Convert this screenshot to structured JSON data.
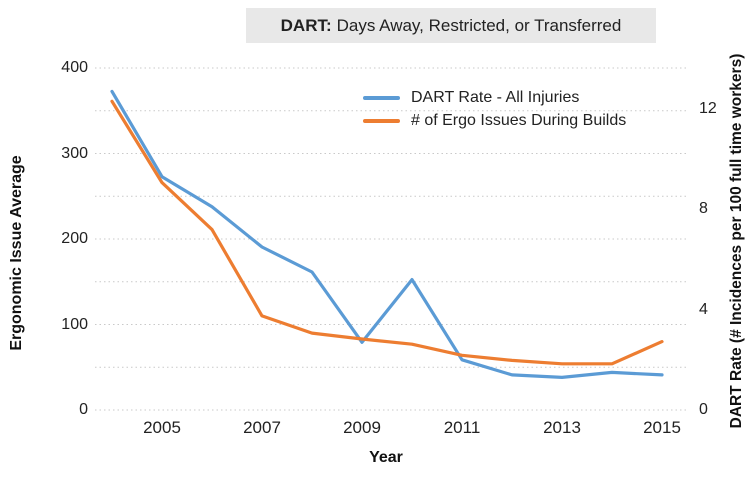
{
  "chart_data": {
    "type": "line",
    "title": {
      "prefix": "DART:",
      "text": "Days Away, Restricted, or Transferred"
    },
    "x_label": "Year",
    "years": [
      2004,
      2005,
      2006,
      2007,
      2008,
      2009,
      2010,
      2011,
      2012,
      2013,
      2014,
      2015
    ],
    "x_tick_labels": [
      2005,
      2007,
      2009,
      2011,
      2013,
      2015
    ],
    "series": [
      {
        "name": "DART Rate - All Injuries",
        "axis": "right",
        "color": "#5B9BD5",
        "values": [
          12.7,
          9.3,
          8.1,
          6.5,
          5.5,
          2.7,
          5.2,
          2.0,
          1.4,
          1.3,
          1.5,
          1.4
        ]
      },
      {
        "name": "# of Ergo Issues During Builds",
        "axis": "left",
        "color": "#ED7D31",
        "values": [
          361,
          266,
          211,
          110,
          90,
          83,
          77,
          64,
          58,
          54,
          54,
          80
        ]
      }
    ],
    "left_axis": {
      "label": "Ergonomic Issue Average",
      "ticks": [
        0,
        100,
        200,
        300,
        400
      ],
      "range": [
        0,
        400
      ]
    },
    "right_axis": {
      "label": "DART Rate (# Incidences per 100 full time workers)",
      "ticks": [
        0,
        4,
        8,
        12
      ],
      "range": [
        0,
        12
      ]
    },
    "grid": {
      "left_step": 50,
      "style": "dotted"
    }
  },
  "colors": {
    "title_bg": "#e8e8e8",
    "grid": "#c9c9c9",
    "text": "#1a1a1a",
    "dart_line": "#5B9BD5",
    "ergo_line": "#ED7D31"
  }
}
